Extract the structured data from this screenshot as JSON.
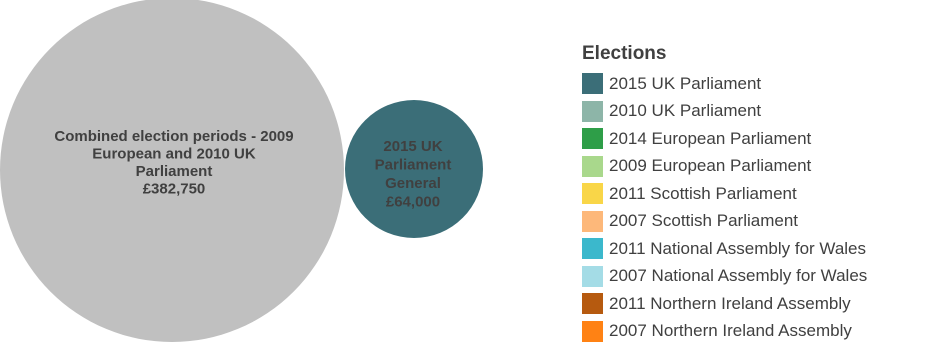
{
  "chart_data": {
    "type": "bubble",
    "bubbles": [
      {
        "label_lines": [
          "Combined election periods - 2009",
          "European and 2010 UK",
          "Parliament",
          "£382,750"
        ],
        "value": 382750,
        "color": "#c0c0c0",
        "text_color": "#404040"
      },
      {
        "label_lines": [
          "2015 UK",
          "Parliament",
          "General",
          "£64,000"
        ],
        "value": 64000,
        "color": "#3b6e78",
        "text_color": "#404040"
      }
    ],
    "legend": {
      "title": "Elections",
      "placement": "right",
      "items": [
        {
          "label": "2015 UK Parliament",
          "color": "#3b6e78"
        },
        {
          "label": "2010 UK Parliament",
          "color": "#8db5a8"
        },
        {
          "label": "2014 European Parliament",
          "color": "#2e9e48"
        },
        {
          "label": "2009 European Parliament",
          "color": "#a9d88c"
        },
        {
          "label": "2011 Scottish Parliament",
          "color": "#f9d648"
        },
        {
          "label": "2007 Scottish Parliament",
          "color": "#fdb87a"
        },
        {
          "label": "2011 National Assembly for Wales",
          "color": "#3bb8cc"
        },
        {
          "label": "2007 National Assembly for Wales",
          "color": "#a4dce6"
        },
        {
          "label": "2011 Northern Ireland Assembly",
          "color": "#b65a0f"
        },
        {
          "label": "2007 Northern Ireland Assembly",
          "color": "#ff8214"
        }
      ]
    }
  }
}
